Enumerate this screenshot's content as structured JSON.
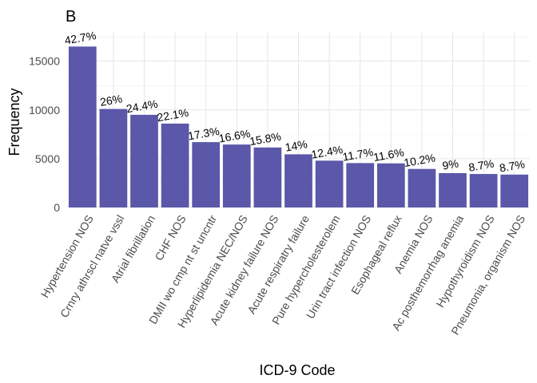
{
  "panel_tag": "B",
  "chart_data": {
    "type": "bar",
    "title": "",
    "xlabel": "ICD-9 Code",
    "ylabel": "Frequency",
    "ylim": [
      0,
      18000
    ],
    "yticks": [
      0,
      5000,
      10000,
      15000
    ],
    "grid": true,
    "bar_color": "#5B57A9",
    "categories": [
      "Hypertension NOS",
      "Crnry athrscl natve vssl",
      "Atrial fibrillation",
      "CHF NOS",
      "DMII wo cmp nt st uncntr",
      "Hyperlipidemia NEC/NOS",
      "Acute kidney failure NOS",
      "Acute respiratry failure",
      "Pure hypercholesterolem",
      "Urin tract infection NOS",
      "Esophageal reflux",
      "Anemia NOS",
      "Ac posthemorrhag anemia",
      "Hypothyroidism NOS",
      "Pneumonia, organism NOS"
    ],
    "values": [
      16500,
      10100,
      9500,
      8600,
      6700,
      6450,
      6150,
      5450,
      4800,
      4550,
      4520,
      3950,
      3520,
      3430,
      3370
    ],
    "data_labels": [
      "42.7%",
      "26%",
      "24.4%",
      "22.1%",
      "17.3%",
      "16.6%",
      "15.8%",
      "14%",
      "12.4%",
      "11.7%",
      "11.6%",
      "10.2%",
      "9%",
      "8.7%",
      "8.7%"
    ]
  }
}
